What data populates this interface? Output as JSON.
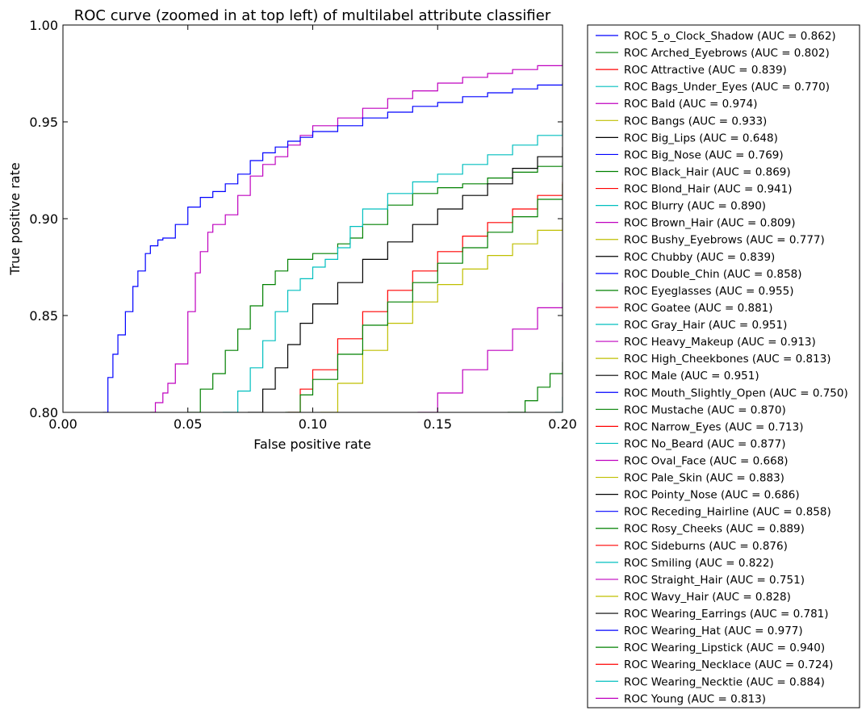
{
  "chart_data": {
    "type": "line",
    "title": "ROC curve (zoomed in at top left) of multilabel attribute classifier",
    "xlabel": "False positive rate",
    "ylabel": "True positive rate",
    "xlim": [
      0.0,
      0.2
    ],
    "ylim": [
      0.8,
      1.0
    ],
    "xticks": [
      0.0,
      0.05,
      0.1,
      0.15,
      0.2
    ],
    "xtick_labels": [
      "0.00",
      "0.05",
      "0.10",
      "0.15",
      "0.20"
    ],
    "yticks": [
      0.8,
      0.85,
      0.9,
      0.95,
      1.0
    ],
    "ytick_labels": [
      "0.80",
      "0.85",
      "0.90",
      "0.95",
      "1.00"
    ],
    "grid": false,
    "legend_position": "outside-right",
    "series": [
      {
        "name": "ROC 5_o_Clock_Shadow (AUC = 0.862)",
        "color": "#0000ff",
        "x": [],
        "y": []
      },
      {
        "name": "ROC Arched_Eyebrows (AUC = 0.802)",
        "color": "#008000",
        "x": [],
        "y": []
      },
      {
        "name": "ROC Attractive (AUC = 0.839)",
        "color": "#ff0000",
        "x": [],
        "y": []
      },
      {
        "name": "ROC Bags_Under_Eyes (AUC = 0.770)",
        "color": "#00bfbf",
        "x": [],
        "y": []
      },
      {
        "name": "ROC Bald (AUC = 0.974)",
        "color": "#bf00bf",
        "x": [
          0.035,
          0.037,
          0.04,
          0.042,
          0.045,
          0.05,
          0.053,
          0.055,
          0.058,
          0.06,
          0.065,
          0.07,
          0.075,
          0.08,
          0.085,
          0.09,
          0.095,
          0.1,
          0.11,
          0.12,
          0.13,
          0.14,
          0.15,
          0.16,
          0.17,
          0.18,
          0.19,
          0.2
        ],
        "y": [
          0.8,
          0.805,
          0.81,
          0.815,
          0.825,
          0.852,
          0.872,
          0.883,
          0.893,
          0.897,
          0.902,
          0.912,
          0.922,
          0.928,
          0.932,
          0.938,
          0.943,
          0.948,
          0.952,
          0.957,
          0.962,
          0.966,
          0.97,
          0.973,
          0.975,
          0.977,
          0.979,
          0.982
        ]
      },
      {
        "name": "ROC Bangs (AUC = 0.933)",
        "color": "#bfbf00",
        "x": [],
        "y": []
      },
      {
        "name": "ROC Big_Lips (AUC = 0.648)",
        "color": "#000000",
        "x": [],
        "y": []
      },
      {
        "name": "ROC Big_Nose (AUC = 0.769)",
        "color": "#0000ff",
        "x": [],
        "y": []
      },
      {
        "name": "ROC Black_Hair (AUC = 0.869)",
        "color": "#008000",
        "x": [
          0.05,
          0.055,
          0.06,
          0.065,
          0.07,
          0.075,
          0.08,
          0.085,
          0.09,
          0.1,
          0.11,
          0.115,
          0.12,
          0.13,
          0.14,
          0.15,
          0.16,
          0.17,
          0.18,
          0.19,
          0.2
        ],
        "y": [
          0.8,
          0.812,
          0.82,
          0.832,
          0.843,
          0.855,
          0.866,
          0.873,
          0.879,
          0.882,
          0.887,
          0.89,
          0.897,
          0.907,
          0.913,
          0.916,
          0.918,
          0.921,
          0.924,
          0.927,
          0.929
        ]
      },
      {
        "name": "ROC Blond_Hair (AUC = 0.941)",
        "color": "#ff0000",
        "x": [],
        "y": []
      },
      {
        "name": "ROC Blurry (AUC = 0.890)",
        "color": "#00bfbf",
        "x": [],
        "y": []
      },
      {
        "name": "ROC Brown_Hair (AUC = 0.809)",
        "color": "#bf00bf",
        "x": [],
        "y": []
      },
      {
        "name": "ROC Bushy_Eyebrows (AUC = 0.777)",
        "color": "#bfbf00",
        "x": [],
        "y": []
      },
      {
        "name": "ROC Chubby (AUC = 0.839)",
        "color": "#000000",
        "x": [],
        "y": []
      },
      {
        "name": "ROC Double_Chin (AUC = 0.858)",
        "color": "#0000ff",
        "x": [],
        "y": []
      },
      {
        "name": "ROC Eyeglasses (AUC = 0.955)",
        "color": "#008000",
        "x": [],
        "y": []
      },
      {
        "name": "ROC Goatee (AUC = 0.881)",
        "color": "#ff0000",
        "x": [
          0.09,
          0.095,
          0.1,
          0.11,
          0.12,
          0.13,
          0.14,
          0.15,
          0.16,
          0.17,
          0.18,
          0.19,
          0.2
        ],
        "y": [
          0.8,
          0.812,
          0.822,
          0.838,
          0.852,
          0.863,
          0.873,
          0.883,
          0.891,
          0.898,
          0.905,
          0.912,
          0.919
        ]
      },
      {
        "name": "ROC Gray_Hair (AUC = 0.951)",
        "color": "#00bfbf",
        "x": [
          0.064,
          0.07,
          0.075,
          0.08,
          0.085,
          0.09,
          0.095,
          0.1,
          0.105,
          0.11,
          0.115,
          0.12,
          0.13,
          0.14,
          0.15,
          0.16,
          0.17,
          0.18,
          0.19,
          0.2
        ],
        "y": [
          0.8,
          0.811,
          0.823,
          0.837,
          0.852,
          0.863,
          0.869,
          0.875,
          0.879,
          0.885,
          0.896,
          0.905,
          0.913,
          0.919,
          0.923,
          0.928,
          0.933,
          0.938,
          0.943,
          0.947
        ]
      },
      {
        "name": "ROC Heavy_Makeup (AUC = 0.913)",
        "color": "#bf00bf",
        "x": [
          0.142,
          0.15,
          0.16,
          0.17,
          0.18,
          0.19,
          0.2
        ],
        "y": [
          0.8,
          0.81,
          0.822,
          0.832,
          0.843,
          0.854,
          0.867
        ]
      },
      {
        "name": "ROC High_Cheekbones (AUC = 0.813)",
        "color": "#bfbf00",
        "x": [
          0.103,
          0.11,
          0.12,
          0.13,
          0.14,
          0.15,
          0.16,
          0.17,
          0.18,
          0.19,
          0.2
        ],
        "y": [
          0.8,
          0.815,
          0.832,
          0.846,
          0.857,
          0.866,
          0.874,
          0.881,
          0.887,
          0.894,
          0.9
        ]
      },
      {
        "name": "ROC Male (AUC = 0.951)",
        "color": "#000000",
        "x": [
          0.074,
          0.08,
          0.085,
          0.09,
          0.095,
          0.1,
          0.11,
          0.12,
          0.13,
          0.14,
          0.15,
          0.16,
          0.17,
          0.18,
          0.19,
          0.2
        ],
        "y": [
          0.8,
          0.812,
          0.823,
          0.835,
          0.846,
          0.856,
          0.867,
          0.879,
          0.888,
          0.897,
          0.905,
          0.912,
          0.918,
          0.926,
          0.932,
          0.937
        ]
      },
      {
        "name": "ROC Mouth_Slightly_Open (AUC = 0.750)",
        "color": "#0000ff",
        "x": [
          0.016,
          0.018,
          0.02,
          0.022,
          0.025,
          0.028,
          0.03,
          0.033,
          0.035,
          0.038,
          0.04,
          0.045,
          0.05,
          0.055,
          0.06,
          0.065,
          0.07,
          0.075,
          0.08,
          0.085,
          0.09,
          0.095,
          0.1,
          0.11,
          0.12,
          0.13,
          0.14,
          0.15,
          0.16,
          0.17,
          0.18,
          0.19,
          0.2
        ],
        "y": [
          0.8,
          0.818,
          0.83,
          0.84,
          0.852,
          0.865,
          0.873,
          0.882,
          0.886,
          0.889,
          0.89,
          0.897,
          0.906,
          0.911,
          0.914,
          0.918,
          0.923,
          0.93,
          0.934,
          0.937,
          0.94,
          0.942,
          0.945,
          0.948,
          0.952,
          0.955,
          0.958,
          0.96,
          0.963,
          0.965,
          0.967,
          0.969,
          0.97
        ]
      },
      {
        "name": "ROC Mustache (AUC = 0.870)",
        "color": "#008000",
        "x": [
          0.089,
          0.095,
          0.1,
          0.11,
          0.12,
          0.13,
          0.14,
          0.15,
          0.16,
          0.17,
          0.18,
          0.19,
          0.2
        ],
        "y": [
          0.8,
          0.809,
          0.817,
          0.83,
          0.845,
          0.857,
          0.867,
          0.877,
          0.885,
          0.893,
          0.901,
          0.91,
          0.918
        ]
      },
      {
        "name": "ROC Narrow_Eyes (AUC = 0.713)",
        "color": "#ff0000",
        "x": [],
        "y": []
      },
      {
        "name": "ROC No_Beard (AUC = 0.877)",
        "color": "#00bfbf",
        "x": [
          0.197,
          0.2
        ],
        "y": [
          0.8,
          0.808
        ]
      },
      {
        "name": "ROC Oval_Face (AUC = 0.668)",
        "color": "#bf00bf",
        "x": [],
        "y": []
      },
      {
        "name": "ROC Pale_Skin (AUC = 0.883)",
        "color": "#bfbf00",
        "x": [],
        "y": []
      },
      {
        "name": "ROC Pointy_Nose (AUC = 0.686)",
        "color": "#000000",
        "x": [],
        "y": []
      },
      {
        "name": "ROC Receding_Hairline (AUC = 0.858)",
        "color": "#0000ff",
        "x": [],
        "y": []
      },
      {
        "name": "ROC Rosy_Cheeks (AUC = 0.889)",
        "color": "#008000",
        "x": [
          0.178,
          0.185,
          0.19,
          0.195,
          0.2
        ],
        "y": [
          0.8,
          0.806,
          0.813,
          0.82,
          0.826
        ]
      },
      {
        "name": "ROC Sideburns (AUC = 0.876)",
        "color": "#ff0000",
        "x": [],
        "y": []
      },
      {
        "name": "ROC Smiling (AUC = 0.822)",
        "color": "#00bfbf",
        "x": [],
        "y": []
      },
      {
        "name": "ROC Straight_Hair (AUC = 0.751)",
        "color": "#bf00bf",
        "x": [],
        "y": []
      },
      {
        "name": "ROC Wavy_Hair (AUC = 0.828)",
        "color": "#bfbf00",
        "x": [],
        "y": []
      },
      {
        "name": "ROC Wearing_Earrings (AUC = 0.781)",
        "color": "#000000",
        "x": [],
        "y": []
      },
      {
        "name": "ROC Wearing_Hat (AUC = 0.977)",
        "color": "#0000ff",
        "x": [],
        "y": []
      },
      {
        "name": "ROC Wearing_Lipstick (AUC = 0.940)",
        "color": "#008000",
        "x": [],
        "y": []
      },
      {
        "name": "ROC Wearing_Necklace (AUC = 0.724)",
        "color": "#ff0000",
        "x": [],
        "y": []
      },
      {
        "name": "ROC Wearing_Necktie (AUC = 0.884)",
        "color": "#00bfbf",
        "x": [],
        "y": []
      },
      {
        "name": "ROC Young (AUC = 0.813)",
        "color": "#bf00bf",
        "x": [],
        "y": []
      }
    ]
  }
}
